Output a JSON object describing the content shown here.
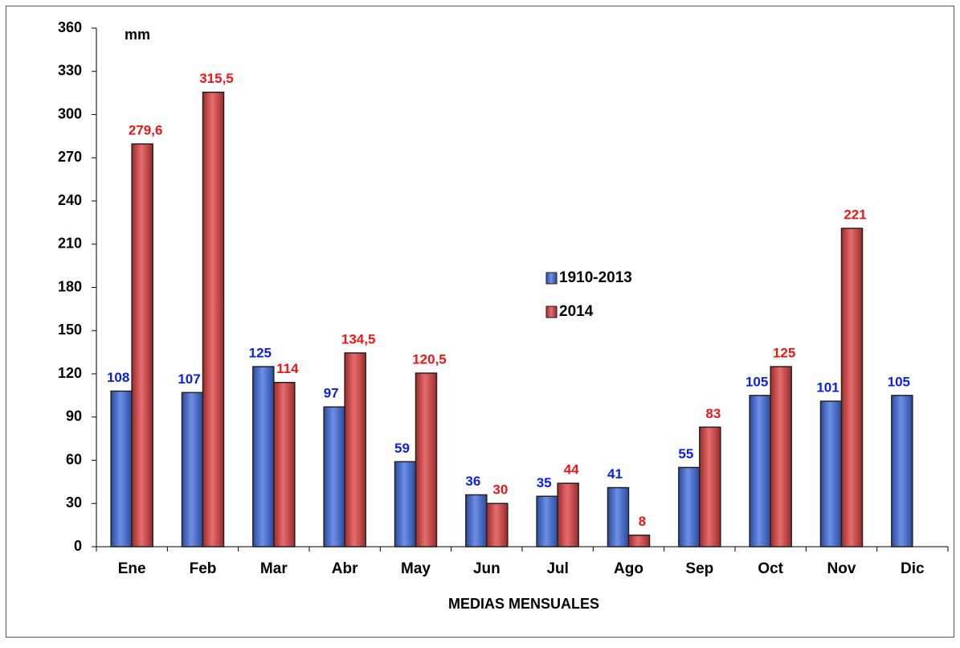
{
  "chart_data": {
    "type": "bar",
    "y_label": "mm",
    "x_label": "MEDIAS MENSUALES",
    "categories": [
      "Ene",
      "Feb",
      "Mar",
      "Abr",
      "May",
      "Jun",
      "Jul",
      "Ago",
      "Sep",
      "Oct",
      "Nov",
      "Dic"
    ],
    "series": [
      {
        "name": "1910-2013",
        "color": "#3f64c8",
        "label_color": "#0a1ee6",
        "values": [
          108,
          107,
          125,
          97,
          59,
          36,
          35,
          41,
          55,
          105,
          101,
          105
        ]
      },
      {
        "name": "2014",
        "color": "#c83c3c",
        "label_color": "#f01414",
        "values": [
          279.6,
          315.5,
          114,
          134.5,
          120.5,
          30,
          44,
          8,
          83,
          125,
          221,
          null
        ],
        "value_labels": [
          "279,6",
          "315,5",
          "114",
          "134,5",
          "120,5",
          "30",
          "44",
          "8",
          "83",
          "125",
          "221",
          null
        ]
      }
    ],
    "ylim": [
      0,
      360
    ],
    "yticks": [
      0,
      30,
      60,
      90,
      120,
      150,
      180,
      210,
      240,
      270,
      300,
      330,
      360
    ],
    "legend": "center"
  }
}
